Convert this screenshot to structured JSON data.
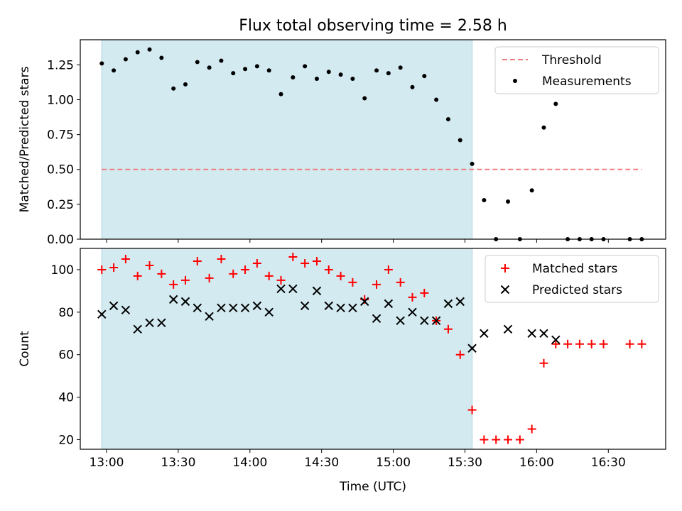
{
  "title": "Flux total observing time = 2.58 h",
  "chart_data": [
    {
      "type": "scatter",
      "ylabel": "Matched/Predicted stars",
      "xlabel": "",
      "xlim": [
        "12:49",
        "16:54"
      ],
      "ylim": [
        0,
        1.43
      ],
      "xticks": [
        "13:00",
        "13:30",
        "14:00",
        "14:30",
        "15:00",
        "15:30",
        "16:00",
        "16:30"
      ],
      "yticks": [
        "0.00",
        "0.25",
        "0.50",
        "0.75",
        "1.00",
        "1.25"
      ],
      "shaded_region": {
        "start": "12:58",
        "end": "15:33",
        "color": "#d3eaf0"
      },
      "threshold": {
        "name": "Threshold",
        "value": 0.5,
        "start": "12:58",
        "end": "16:44",
        "color": "#f08080"
      },
      "legend": "top-right",
      "legend_entries": [
        "Threshold",
        "Measurements"
      ],
      "series": [
        {
          "name": "Measurements",
          "color": "#000000",
          "marker": "dot",
          "x": [
            "12:58",
            "13:03",
            "13:08",
            "13:13",
            "13:18",
            "13:23",
            "13:28",
            "13:33",
            "13:38",
            "13:43",
            "13:48",
            "13:53",
            "13:58",
            "14:03",
            "14:08",
            "14:13",
            "14:18",
            "14:23",
            "14:28",
            "14:33",
            "14:38",
            "14:43",
            "14:48",
            "14:53",
            "14:58",
            "15:03",
            "15:08",
            "15:13",
            "15:18",
            "15:23",
            "15:28",
            "15:33",
            "15:38",
            "15:43",
            "15:48",
            "15:53",
            "15:58",
            "16:03",
            "16:08",
            "16:13",
            "16:18",
            "16:23",
            "16:28",
            "16:39",
            "16:44"
          ],
          "y": [
            1.26,
            1.21,
            1.29,
            1.34,
            1.36,
            1.3,
            1.08,
            1.11,
            1.27,
            1.23,
            1.28,
            1.19,
            1.22,
            1.24,
            1.21,
            1.04,
            1.16,
            1.24,
            1.15,
            1.2,
            1.18,
            1.15,
            1.01,
            1.21,
            1.19,
            1.23,
            1.09,
            1.17,
            1.0,
            0.86,
            0.71,
            0.54,
            0.28,
            0.0,
            0.27,
            0.0,
            0.35,
            0.8,
            0.97,
            0.0,
            0.0,
            0.0,
            0.0,
            0.0,
            0.0
          ]
        }
      ]
    },
    {
      "type": "scatter",
      "ylabel": "Count",
      "xlabel": "Time (UTC)",
      "xlim": [
        "12:49",
        "16:54"
      ],
      "ylim": [
        15.5,
        110
      ],
      "xticks": [
        "13:00",
        "13:30",
        "14:00",
        "14:30",
        "15:00",
        "15:30",
        "16:00",
        "16:30"
      ],
      "yticks": [
        "20",
        "40",
        "60",
        "80",
        "100"
      ],
      "shaded_region": {
        "start": "12:58",
        "end": "15:33",
        "color": "#d3eaf0"
      },
      "legend": "top-right",
      "legend_entries": [
        "Matched stars",
        "Predicted stars"
      ],
      "series": [
        {
          "name": "Matched stars",
          "color": "#ff0000",
          "marker": "plus",
          "x": [
            "12:58",
            "13:03",
            "13:08",
            "13:13",
            "13:18",
            "13:23",
            "13:28",
            "13:33",
            "13:38",
            "13:43",
            "13:48",
            "13:53",
            "13:58",
            "14:03",
            "14:08",
            "14:13",
            "14:18",
            "14:23",
            "14:28",
            "14:33",
            "14:38",
            "14:43",
            "14:48",
            "14:53",
            "14:58",
            "15:03",
            "15:08",
            "15:13",
            "15:18",
            "15:23",
            "15:28",
            "15:33",
            "15:38",
            "15:43",
            "15:48",
            "15:53",
            "15:58",
            "16:03",
            "16:08",
            "16:13",
            "16:18",
            "16:23",
            "16:28",
            "16:39",
            "16:44"
          ],
          "y": [
            100,
            101,
            105,
            97,
            102,
            98,
            93,
            95,
            104,
            96,
            105,
            98,
            100,
            103,
            97,
            95,
            106,
            103,
            104,
            100,
            97,
            94,
            86,
            93,
            100,
            94,
            87,
            89,
            76,
            72,
            60,
            34,
            20,
            20,
            20,
            20,
            25,
            56,
            65,
            65,
            65,
            65,
            65,
            65,
            65
          ]
        },
        {
          "name": "Predicted stars",
          "color": "#000000",
          "marker": "x",
          "x": [
            "12:58",
            "13:03",
            "13:08",
            "13:13",
            "13:18",
            "13:23",
            "13:28",
            "13:33",
            "13:38",
            "13:43",
            "13:48",
            "13:53",
            "13:58",
            "14:03",
            "14:08",
            "14:13",
            "14:18",
            "14:23",
            "14:28",
            "14:33",
            "14:38",
            "14:43",
            "14:48",
            "14:53",
            "14:58",
            "15:03",
            "15:08",
            "15:13",
            "15:18",
            "15:23",
            "15:28",
            "15:33",
            "15:38",
            "15:48",
            "15:58",
            "16:03",
            "16:08"
          ],
          "y": [
            79,
            83,
            81,
            72,
            75,
            75,
            86,
            85,
            82,
            78,
            82,
            82,
            82,
            83,
            80,
            91,
            91,
            83,
            90,
            83,
            82,
            82,
            85,
            77,
            84,
            76,
            80,
            76,
            76,
            84,
            85,
            63,
            70,
            72,
            70,
            70,
            67
          ]
        }
      ]
    }
  ]
}
